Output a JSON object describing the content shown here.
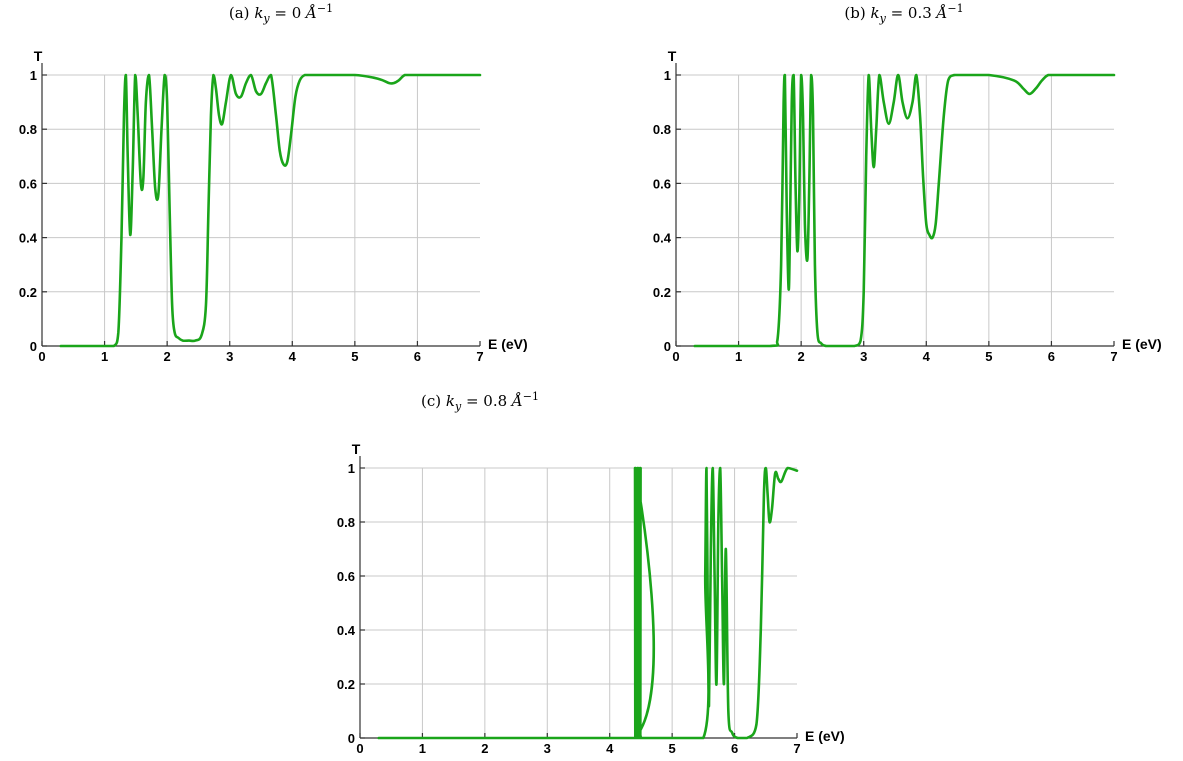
{
  "chart_data": [
    {
      "id": "a",
      "type": "line",
      "caption": "(a) k_y = 0 Å^-1",
      "caption_prefix": "(a)",
      "caption_var": "k",
      "caption_sub": "y",
      "caption_rest": " = 0 ",
      "caption_unit": "Å",
      "caption_exp": "−1",
      "xlabel": "E (eV)",
      "ylabel": "T",
      "xlim": [
        0,
        7
      ],
      "ylim": [
        0,
        1
      ],
      "xticks": [
        "0",
        "1",
        "2",
        "3",
        "4",
        "5",
        "6",
        "7"
      ],
      "yticks": [
        "0",
        "0.2",
        "0.4",
        "0.6",
        "0.8",
        "1"
      ],
      "grid": true,
      "series": [
        {
          "color": "#1aa51a",
          "x": [
            0.3,
            1.0,
            1.15,
            1.22,
            1.27,
            1.31,
            1.34,
            1.37,
            1.41,
            1.45,
            1.49,
            1.53,
            1.58,
            1.62,
            1.66,
            1.71,
            1.76,
            1.81,
            1.86,
            1.91,
            1.96,
            2.0,
            2.04,
            2.08,
            2.12,
            2.18,
            2.25,
            2.35,
            2.45,
            2.55,
            2.62,
            2.66,
            2.7,
            2.74,
            2.78,
            2.83,
            2.88,
            2.94,
            3.02,
            3.1,
            3.18,
            3.26,
            3.34,
            3.42,
            3.5,
            3.58,
            3.66,
            3.74,
            3.8,
            3.86,
            3.92,
            3.98,
            4.05,
            4.12,
            4.2,
            4.3,
            4.5,
            5.0,
            5.3,
            5.45,
            5.55,
            5.62,
            5.7,
            5.8,
            5.95,
            6.3,
            6.6,
            7.0
          ],
          "values": [
            0,
            0,
            0.0,
            0.05,
            0.4,
            0.85,
            1.0,
            0.7,
            0.41,
            0.65,
            1.0,
            0.85,
            0.6,
            0.62,
            0.9,
            1.0,
            0.8,
            0.58,
            0.56,
            0.8,
            1.0,
            0.9,
            0.5,
            0.15,
            0.05,
            0.03,
            0.02,
            0.02,
            0.02,
            0.04,
            0.15,
            0.5,
            0.85,
            1.0,
            0.95,
            0.85,
            0.82,
            0.9,
            1.0,
            0.93,
            0.92,
            0.97,
            1.0,
            0.94,
            0.93,
            0.97,
            1.0,
            0.85,
            0.72,
            0.67,
            0.68,
            0.78,
            0.92,
            0.98,
            1.0,
            1.0,
            1.0,
            1.0,
            0.99,
            0.98,
            0.97,
            0.97,
            0.98,
            1.0,
            1.0,
            1.0,
            1.0,
            1.0
          ]
        }
      ]
    },
    {
      "id": "b",
      "type": "line",
      "caption": "(b) k_y = 0.3 Å^-1",
      "caption_prefix": "(b)",
      "caption_var": "k",
      "caption_sub": "y",
      "caption_rest": " = 0.3 ",
      "caption_unit": "Å",
      "caption_exp": "−1",
      "xlabel": "E (eV)",
      "ylabel": "T",
      "xlim": [
        0,
        7
      ],
      "ylim": [
        0,
        1
      ],
      "xticks": [
        "0",
        "1",
        "2",
        "3",
        "4",
        "5",
        "6",
        "7"
      ],
      "yticks": [
        "0",
        "0.2",
        "0.4",
        "0.6",
        "0.8",
        "1"
      ],
      "grid": true,
      "series": [
        {
          "color": "#1aa51a",
          "x": [
            0.3,
            1.5,
            1.62,
            1.68,
            1.72,
            1.74,
            1.77,
            1.8,
            1.82,
            1.85,
            1.88,
            1.91,
            1.94,
            1.97,
            2.0,
            2.03,
            2.06,
            2.1,
            2.13,
            2.16,
            2.19,
            2.22,
            2.26,
            2.32,
            2.4,
            2.5,
            2.65,
            2.85,
            2.95,
            3.0,
            3.04,
            3.08,
            3.12,
            3.16,
            3.2,
            3.25,
            3.32,
            3.4,
            3.48,
            3.55,
            3.62,
            3.7,
            3.78,
            3.84,
            3.9,
            3.95,
            4.0,
            4.05,
            4.1,
            4.15,
            4.2,
            4.28,
            4.35,
            4.45,
            4.6,
            5.0,
            5.4,
            5.55,
            5.65,
            5.75,
            5.85,
            5.95,
            6.1,
            6.4,
            6.7,
            7.0
          ],
          "values": [
            0,
            0,
            0.02,
            0.3,
            0.9,
            1.0,
            0.5,
            0.21,
            0.4,
            0.9,
            1.0,
            0.6,
            0.35,
            0.55,
            1.0,
            0.85,
            0.45,
            0.32,
            0.6,
            1.0,
            0.85,
            0.3,
            0.05,
            0.01,
            0.0,
            0.0,
            0.0,
            0.0,
            0.02,
            0.2,
            0.7,
            1.0,
            0.8,
            0.66,
            0.8,
            1.0,
            0.9,
            0.82,
            0.9,
            1.0,
            0.9,
            0.84,
            0.9,
            1.0,
            0.85,
            0.62,
            0.45,
            0.41,
            0.4,
            0.45,
            0.6,
            0.85,
            0.98,
            1.0,
            1.0,
            1.0,
            0.98,
            0.95,
            0.93,
            0.95,
            0.98,
            1.0,
            1.0,
            1.0,
            1.0,
            1.0
          ]
        }
      ]
    },
    {
      "id": "c",
      "type": "line",
      "caption": "(c) k_y = 0.8 Å^-1",
      "caption_prefix": "(c)",
      "caption_var": "k",
      "caption_sub": "y",
      "caption_rest": " = 0.8 ",
      "caption_unit": "Å",
      "caption_exp": "−1",
      "xlabel": "E (eV)",
      "ylabel": "T",
      "xlim": [
        0,
        7
      ],
      "ylim": [
        0,
        1
      ],
      "xticks": [
        "0",
        "1",
        "2",
        "3",
        "4",
        "5",
        "6",
        "7"
      ],
      "yticks": [
        "0",
        "0.2",
        "0.4",
        "0.6",
        "0.8",
        "1"
      ],
      "grid": true,
      "series": [
        {
          "color": "#1aa51a",
          "x": [
            0.3,
            4.4,
            4.405,
            4.41,
            4.415,
            4.42,
            4.43,
            4.44,
            4.445,
            4.45,
            4.455,
            4.46,
            4.47,
            4.48,
            4.485,
            4.49,
            4.495,
            4.5,
            5.5,
            5.53,
            5.55,
            5.57,
            5.59,
            5.62,
            5.65,
            5.68,
            5.71,
            5.74,
            5.77,
            5.8,
            5.83,
            5.86,
            5.9,
            5.96,
            6.05,
            6.2,
            6.35,
            6.42,
            6.47,
            6.5,
            6.53,
            6.56,
            6.6,
            6.65,
            6.7,
            6.75,
            6.85,
            7.0
          ],
          "values": [
            0,
            0,
            1.0,
            0.0,
            1.0,
            0.0,
            0.0,
            0.0,
            1.0,
            0.0,
            1.0,
            0.0,
            0.0,
            0.0,
            1.0,
            0.0,
            1.0,
            0.0,
            0.0,
            0.6,
            1.0,
            0.5,
            0.12,
            0.7,
            1.0,
            0.6,
            0.2,
            0.8,
            1.0,
            0.6,
            0.2,
            0.7,
            0.1,
            0.02,
            0.0,
            0.0,
            0.05,
            0.4,
            0.9,
            1.0,
            0.9,
            0.8,
            0.85,
            0.98,
            0.96,
            0.95,
            1.0,
            0.99
          ]
        }
      ]
    }
  ]
}
